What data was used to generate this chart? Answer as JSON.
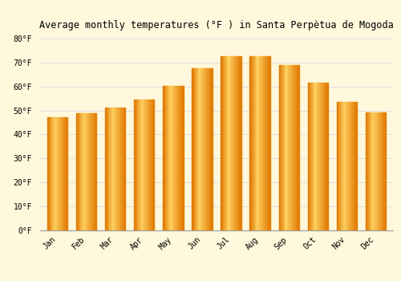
{
  "title": "Average monthly temperatures (°F ) in Santa Perpètua de Mogoda",
  "months": [
    "Jan",
    "Feb",
    "Mar",
    "Apr",
    "May",
    "Jun",
    "Jul",
    "Aug",
    "Sep",
    "Oct",
    "Nov",
    "Dec"
  ],
  "values": [
    47.3,
    48.9,
    51.3,
    54.5,
    60.1,
    67.5,
    72.7,
    72.7,
    69.1,
    61.5,
    53.4,
    49.1
  ],
  "bar_color_main": "#FFA500",
  "bar_color_light": "#FFD060",
  "bar_color_dark": "#E07800",
  "background_color": "#FFF8DC",
  "ylim": [
    0,
    82
  ],
  "yticks": [
    0,
    10,
    20,
    30,
    40,
    50,
    60,
    70,
    80
  ],
  "ytick_labels": [
    "0°F",
    "10°F",
    "20°F",
    "30°F",
    "40°F",
    "50°F",
    "60°F",
    "70°F",
    "80°F"
  ],
  "grid_color": "#DDDDDD",
  "title_fontsize": 8.5,
  "tick_fontsize": 7,
  "font_family": "monospace",
  "bar_width": 0.7
}
